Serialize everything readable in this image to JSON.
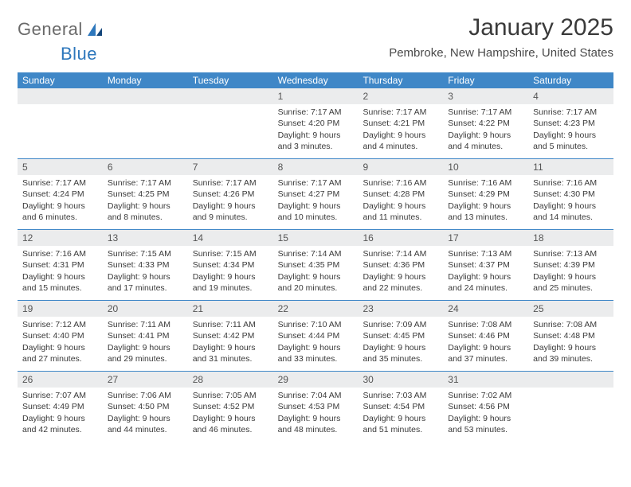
{
  "logo": {
    "text1": "General",
    "text2": "Blue"
  },
  "title": "January 2025",
  "location": "Pembroke, New Hampshire, United States",
  "colors": {
    "header_bg": "#3f87c7",
    "header_text": "#ffffff",
    "daynum_bg": "#ebeced",
    "week_border": "#3f87c7",
    "body_text": "#3a3a3a",
    "logo_gray": "#6a6a6a",
    "logo_blue": "#2d77bc"
  },
  "day_names": [
    "Sunday",
    "Monday",
    "Tuesday",
    "Wednesday",
    "Thursday",
    "Friday",
    "Saturday"
  ],
  "weeks": [
    [
      {
        "n": "",
        "sr": "",
        "ss": "",
        "dl": ""
      },
      {
        "n": "",
        "sr": "",
        "ss": "",
        "dl": ""
      },
      {
        "n": "",
        "sr": "",
        "ss": "",
        "dl": ""
      },
      {
        "n": "1",
        "sr": "Sunrise: 7:17 AM",
        "ss": "Sunset: 4:20 PM",
        "dl": "Daylight: 9 hours and 3 minutes."
      },
      {
        "n": "2",
        "sr": "Sunrise: 7:17 AM",
        "ss": "Sunset: 4:21 PM",
        "dl": "Daylight: 9 hours and 4 minutes."
      },
      {
        "n": "3",
        "sr": "Sunrise: 7:17 AM",
        "ss": "Sunset: 4:22 PM",
        "dl": "Daylight: 9 hours and 4 minutes."
      },
      {
        "n": "4",
        "sr": "Sunrise: 7:17 AM",
        "ss": "Sunset: 4:23 PM",
        "dl": "Daylight: 9 hours and 5 minutes."
      }
    ],
    [
      {
        "n": "5",
        "sr": "Sunrise: 7:17 AM",
        "ss": "Sunset: 4:24 PM",
        "dl": "Daylight: 9 hours and 6 minutes."
      },
      {
        "n": "6",
        "sr": "Sunrise: 7:17 AM",
        "ss": "Sunset: 4:25 PM",
        "dl": "Daylight: 9 hours and 8 minutes."
      },
      {
        "n": "7",
        "sr": "Sunrise: 7:17 AM",
        "ss": "Sunset: 4:26 PM",
        "dl": "Daylight: 9 hours and 9 minutes."
      },
      {
        "n": "8",
        "sr": "Sunrise: 7:17 AM",
        "ss": "Sunset: 4:27 PM",
        "dl": "Daylight: 9 hours and 10 minutes."
      },
      {
        "n": "9",
        "sr": "Sunrise: 7:16 AM",
        "ss": "Sunset: 4:28 PM",
        "dl": "Daylight: 9 hours and 11 minutes."
      },
      {
        "n": "10",
        "sr": "Sunrise: 7:16 AM",
        "ss": "Sunset: 4:29 PM",
        "dl": "Daylight: 9 hours and 13 minutes."
      },
      {
        "n": "11",
        "sr": "Sunrise: 7:16 AM",
        "ss": "Sunset: 4:30 PM",
        "dl": "Daylight: 9 hours and 14 minutes."
      }
    ],
    [
      {
        "n": "12",
        "sr": "Sunrise: 7:16 AM",
        "ss": "Sunset: 4:31 PM",
        "dl": "Daylight: 9 hours and 15 minutes."
      },
      {
        "n": "13",
        "sr": "Sunrise: 7:15 AM",
        "ss": "Sunset: 4:33 PM",
        "dl": "Daylight: 9 hours and 17 minutes."
      },
      {
        "n": "14",
        "sr": "Sunrise: 7:15 AM",
        "ss": "Sunset: 4:34 PM",
        "dl": "Daylight: 9 hours and 19 minutes."
      },
      {
        "n": "15",
        "sr": "Sunrise: 7:14 AM",
        "ss": "Sunset: 4:35 PM",
        "dl": "Daylight: 9 hours and 20 minutes."
      },
      {
        "n": "16",
        "sr": "Sunrise: 7:14 AM",
        "ss": "Sunset: 4:36 PM",
        "dl": "Daylight: 9 hours and 22 minutes."
      },
      {
        "n": "17",
        "sr": "Sunrise: 7:13 AM",
        "ss": "Sunset: 4:37 PM",
        "dl": "Daylight: 9 hours and 24 minutes."
      },
      {
        "n": "18",
        "sr": "Sunrise: 7:13 AM",
        "ss": "Sunset: 4:39 PM",
        "dl": "Daylight: 9 hours and 25 minutes."
      }
    ],
    [
      {
        "n": "19",
        "sr": "Sunrise: 7:12 AM",
        "ss": "Sunset: 4:40 PM",
        "dl": "Daylight: 9 hours and 27 minutes."
      },
      {
        "n": "20",
        "sr": "Sunrise: 7:11 AM",
        "ss": "Sunset: 4:41 PM",
        "dl": "Daylight: 9 hours and 29 minutes."
      },
      {
        "n": "21",
        "sr": "Sunrise: 7:11 AM",
        "ss": "Sunset: 4:42 PM",
        "dl": "Daylight: 9 hours and 31 minutes."
      },
      {
        "n": "22",
        "sr": "Sunrise: 7:10 AM",
        "ss": "Sunset: 4:44 PM",
        "dl": "Daylight: 9 hours and 33 minutes."
      },
      {
        "n": "23",
        "sr": "Sunrise: 7:09 AM",
        "ss": "Sunset: 4:45 PM",
        "dl": "Daylight: 9 hours and 35 minutes."
      },
      {
        "n": "24",
        "sr": "Sunrise: 7:08 AM",
        "ss": "Sunset: 4:46 PM",
        "dl": "Daylight: 9 hours and 37 minutes."
      },
      {
        "n": "25",
        "sr": "Sunrise: 7:08 AM",
        "ss": "Sunset: 4:48 PM",
        "dl": "Daylight: 9 hours and 39 minutes."
      }
    ],
    [
      {
        "n": "26",
        "sr": "Sunrise: 7:07 AM",
        "ss": "Sunset: 4:49 PM",
        "dl": "Daylight: 9 hours and 42 minutes."
      },
      {
        "n": "27",
        "sr": "Sunrise: 7:06 AM",
        "ss": "Sunset: 4:50 PM",
        "dl": "Daylight: 9 hours and 44 minutes."
      },
      {
        "n": "28",
        "sr": "Sunrise: 7:05 AM",
        "ss": "Sunset: 4:52 PM",
        "dl": "Daylight: 9 hours and 46 minutes."
      },
      {
        "n": "29",
        "sr": "Sunrise: 7:04 AM",
        "ss": "Sunset: 4:53 PM",
        "dl": "Daylight: 9 hours and 48 minutes."
      },
      {
        "n": "30",
        "sr": "Sunrise: 7:03 AM",
        "ss": "Sunset: 4:54 PM",
        "dl": "Daylight: 9 hours and 51 minutes."
      },
      {
        "n": "31",
        "sr": "Sunrise: 7:02 AM",
        "ss": "Sunset: 4:56 PM",
        "dl": "Daylight: 9 hours and 53 minutes."
      },
      {
        "n": "",
        "sr": "",
        "ss": "",
        "dl": ""
      }
    ]
  ]
}
